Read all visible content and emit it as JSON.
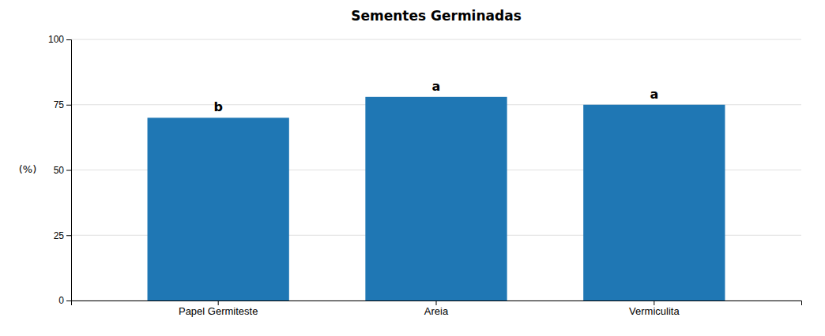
{
  "chart_data": {
    "type": "bar",
    "title": "Sementes Germinadas",
    "categories": [
      "Papel Germiteste",
      "Areia",
      "Vermiculita"
    ],
    "values": [
      70.0,
      78.0,
      75.0
    ],
    "annotations": [
      "b",
      "a",
      "a"
    ],
    "ylabel": "(%)",
    "ylim": [
      0,
      100
    ],
    "yticks": [
      0,
      25,
      50,
      75,
      100
    ],
    "grid": true
  }
}
